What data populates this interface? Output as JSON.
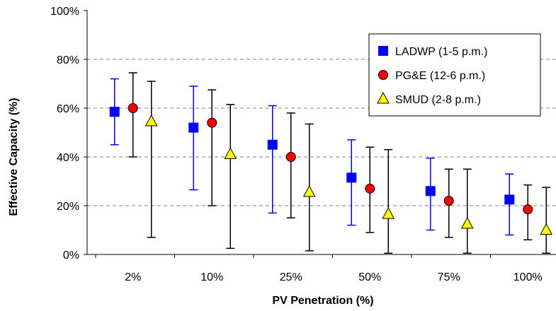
{
  "chart_data": {
    "type": "scatter",
    "title": "",
    "xlabel": "PV Penetration (%)",
    "ylabel": "Effective Capacity (%)",
    "categories": [
      "2%",
      "10%",
      "25%",
      "50%",
      "75%",
      "100%"
    ],
    "ylim": [
      0,
      100
    ],
    "yticks": [
      "0%",
      "20%",
      "40%",
      "60%",
      "80%",
      "100%"
    ],
    "grid": true,
    "legend_position": "top-right",
    "series": [
      {
        "name": "LADWP (1-5 p.m.)",
        "marker": "square",
        "color": "#0000FF",
        "errorbar_color": "#0000FF",
        "values": [
          58.5,
          52,
          45,
          31.5,
          26,
          22.5
        ],
        "low": [
          45,
          26.5,
          17,
          12,
          10,
          8
        ],
        "high": [
          72,
          69,
          61,
          47,
          39.5,
          33
        ]
      },
      {
        "name": "PG&E (12-6 p.m.)",
        "marker": "circle",
        "color": "#FF0000",
        "errorbar_color": "#000000",
        "values": [
          60,
          54,
          40,
          27,
          22,
          18.5
        ],
        "low": [
          40,
          20,
          15,
          9,
          7,
          6
        ],
        "high": [
          74.5,
          67.5,
          58,
          44,
          35,
          28.5
        ]
      },
      {
        "name": "SMUD (2-8 p.m.)",
        "marker": "triangle",
        "color": "#FFFF00",
        "errorbar_color": "#000000",
        "values": [
          54.5,
          41,
          25.5,
          16.5,
          12.5,
          10
        ],
        "low": [
          7,
          2.5,
          1.5,
          0.5,
          0.5,
          0.5
        ],
        "high": [
          71,
          61.5,
          53.5,
          43,
          35,
          27.5
        ]
      }
    ]
  }
}
